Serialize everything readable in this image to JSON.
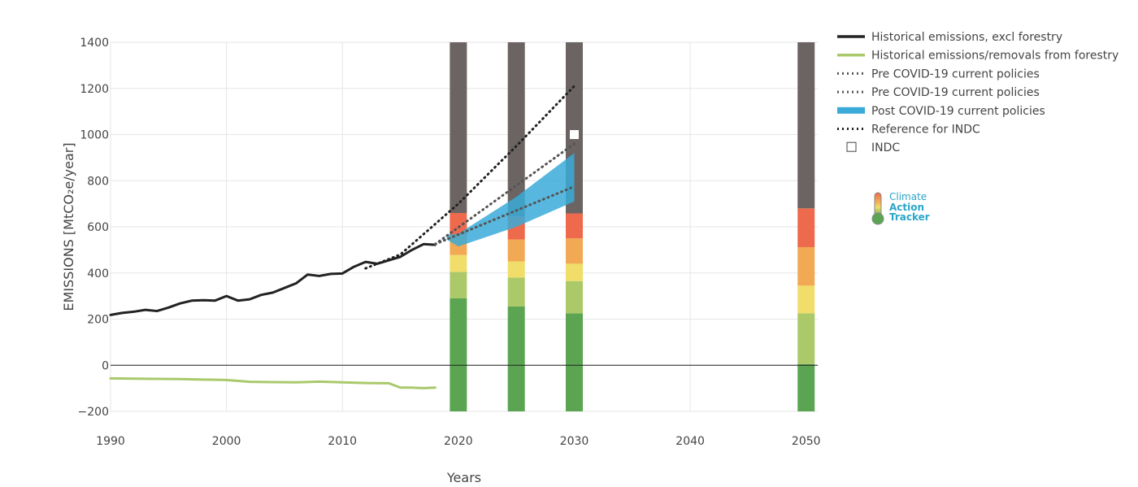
{
  "chart_data": {
    "type": "bar",
    "xlabel": "Years",
    "ylabel": "EMISSIONS [MtCO₂e/year]",
    "xlim": [
      1990,
      2051
    ],
    "ylim": [
      -200,
      1400
    ],
    "xticks": [
      "1990",
      "2000",
      "2010",
      "2020",
      "2030",
      "2040",
      "2050"
    ],
    "xtick_values": [
      1990,
      2000,
      2010,
      2020,
      2030,
      2040,
      2050
    ],
    "yticks": [
      "1400",
      "1200",
      "1000",
      "800",
      "600",
      "400",
      "200",
      "0",
      "−200"
    ],
    "ytick_values": [
      1400,
      1200,
      1000,
      800,
      600,
      400,
      200,
      0,
      -200
    ],
    "grid": true,
    "legend_position": "right",
    "legend": [
      {
        "label": "Historical emissions, excl forestry",
        "style": "solid",
        "color": "#222222"
      },
      {
        "label": "Historical emissions/removals from forestry",
        "style": "solid",
        "color": "#a9c96b"
      },
      {
        "label": "Pre COVID-19 current policies",
        "style": "dotted",
        "color": "#555555"
      },
      {
        "label": "Pre COVID-19 current policies",
        "style": "dotted",
        "color": "#555555"
      },
      {
        "label": "Post COVID-19 current policies",
        "style": "band",
        "color": "#3aaad8"
      },
      {
        "label": "Reference for INDC",
        "style": "dotted",
        "color": "#222222"
      },
      {
        "label": "INDC",
        "style": "square",
        "color": "#ffffff"
      }
    ],
    "series": [
      {
        "name": "Historical emissions, excl forestry",
        "type": "line",
        "color": "#222222",
        "x": [
          1990,
          1991,
          1992,
          1993,
          1994,
          1995,
          1996,
          1997,
          1998,
          1999,
          2000,
          2001,
          2002,
          2003,
          2004,
          2005,
          2006,
          2007,
          2008,
          2009,
          2010,
          2011,
          2012,
          2013,
          2014,
          2015,
          2016,
          2017,
          2018
        ],
        "y": [
          218,
          227,
          232,
          240,
          235,
          250,
          268,
          280,
          282,
          280,
          300,
          280,
          286,
          305,
          315,
          335,
          355,
          393,
          387,
          396,
          398,
          427,
          448,
          440,
          455,
          470,
          500,
          525,
          522
        ]
      },
      {
        "name": "Historical emissions/removals from forestry",
        "type": "line",
        "color": "#a9c96b",
        "x": [
          1990,
          1992,
          1994,
          1996,
          1998,
          2000,
          2002,
          2004,
          2006,
          2008,
          2010,
          2012,
          2014,
          2015,
          2016,
          2017,
          2018
        ],
        "y": [
          -57,
          -58,
          -59,
          -60,
          -62,
          -64,
          -72,
          -73,
          -74,
          -71,
          -74,
          -77,
          -78,
          -97,
          -97,
          -99,
          -97
        ]
      },
      {
        "name": "Pre COVID-19 current policies",
        "type": "line",
        "color": "#555555",
        "dash": "dotted",
        "x": [
          2018,
          2030
        ],
        "y": [
          525,
          960
        ]
      },
      {
        "name": "Pre COVID-19 current policies",
        "type": "line",
        "color": "#555555",
        "dash": "dotted",
        "x": [
          2018,
          2030
        ],
        "y": [
          525,
          775
        ]
      },
      {
        "name": "Reference for INDC",
        "type": "line",
        "color": "#222222",
        "dash": "dotted",
        "x": [
          2012,
          2015,
          2020,
          2025,
          2030
        ],
        "y": [
          420,
          480,
          700,
          950,
          1210
        ]
      },
      {
        "name": "Post COVID-19 current policies",
        "type": "band",
        "color": "#3aaad8",
        "x": [
          2019,
          2020,
          2025,
          2030
        ],
        "lower": [
          545,
          515,
          600,
          710
        ],
        "upper": [
          565,
          570,
          730,
          920
        ]
      },
      {
        "name": "INDC",
        "type": "marker",
        "color": "#ffffff",
        "x": [
          2030
        ],
        "y": [
          1000
        ]
      }
    ],
    "rating_bars": [
      {
        "year": 2020,
        "segments": [
          {
            "from": -200,
            "to": 290,
            "color": "#5ba552"
          },
          {
            "from": 290,
            "to": 405,
            "color": "#acc96a"
          },
          {
            "from": 405,
            "to": 478,
            "color": "#f0dd6a"
          },
          {
            "from": 478,
            "to": 565,
            "color": "#f2a954"
          },
          {
            "from": 565,
            "to": 660,
            "color": "#ee6a4c"
          },
          {
            "from": 660,
            "to": 1400,
            "color": "#6b6462"
          }
        ]
      },
      {
        "year": 2025,
        "segments": [
          {
            "from": -200,
            "to": 255,
            "color": "#5ba552"
          },
          {
            "from": 255,
            "to": 380,
            "color": "#acc96a"
          },
          {
            "from": 380,
            "to": 450,
            "color": "#f0dd6a"
          },
          {
            "from": 450,
            "to": 545,
            "color": "#f2a954"
          },
          {
            "from": 545,
            "to": 645,
            "color": "#ee6a4c"
          },
          {
            "from": 645,
            "to": 1400,
            "color": "#6b6462"
          }
        ]
      },
      {
        "year": 2030,
        "segments": [
          {
            "from": -200,
            "to": 225,
            "color": "#5ba552"
          },
          {
            "from": 225,
            "to": 365,
            "color": "#acc96a"
          },
          {
            "from": 365,
            "to": 440,
            "color": "#f0dd6a"
          },
          {
            "from": 440,
            "to": 550,
            "color": "#f2a954"
          },
          {
            "from": 550,
            "to": 658,
            "color": "#ee6a4c"
          },
          {
            "from": 658,
            "to": 1400,
            "color": "#6b6462"
          }
        ]
      },
      {
        "year": 2050,
        "segments": [
          {
            "from": -200,
            "to": 5,
            "color": "#5ba552"
          },
          {
            "from": 5,
            "to": 225,
            "color": "#acc96a"
          },
          {
            "from": 225,
            "to": 345,
            "color": "#f0dd6a"
          },
          {
            "from": 345,
            "to": 512,
            "color": "#f2a954"
          },
          {
            "from": 512,
            "to": 680,
            "color": "#ee6a4c"
          },
          {
            "from": 680,
            "to": 1400,
            "color": "#6b6462"
          }
        ]
      }
    ]
  },
  "logo": {
    "line1": "Climate",
    "line2": "Action",
    "line3": "Tracker"
  }
}
